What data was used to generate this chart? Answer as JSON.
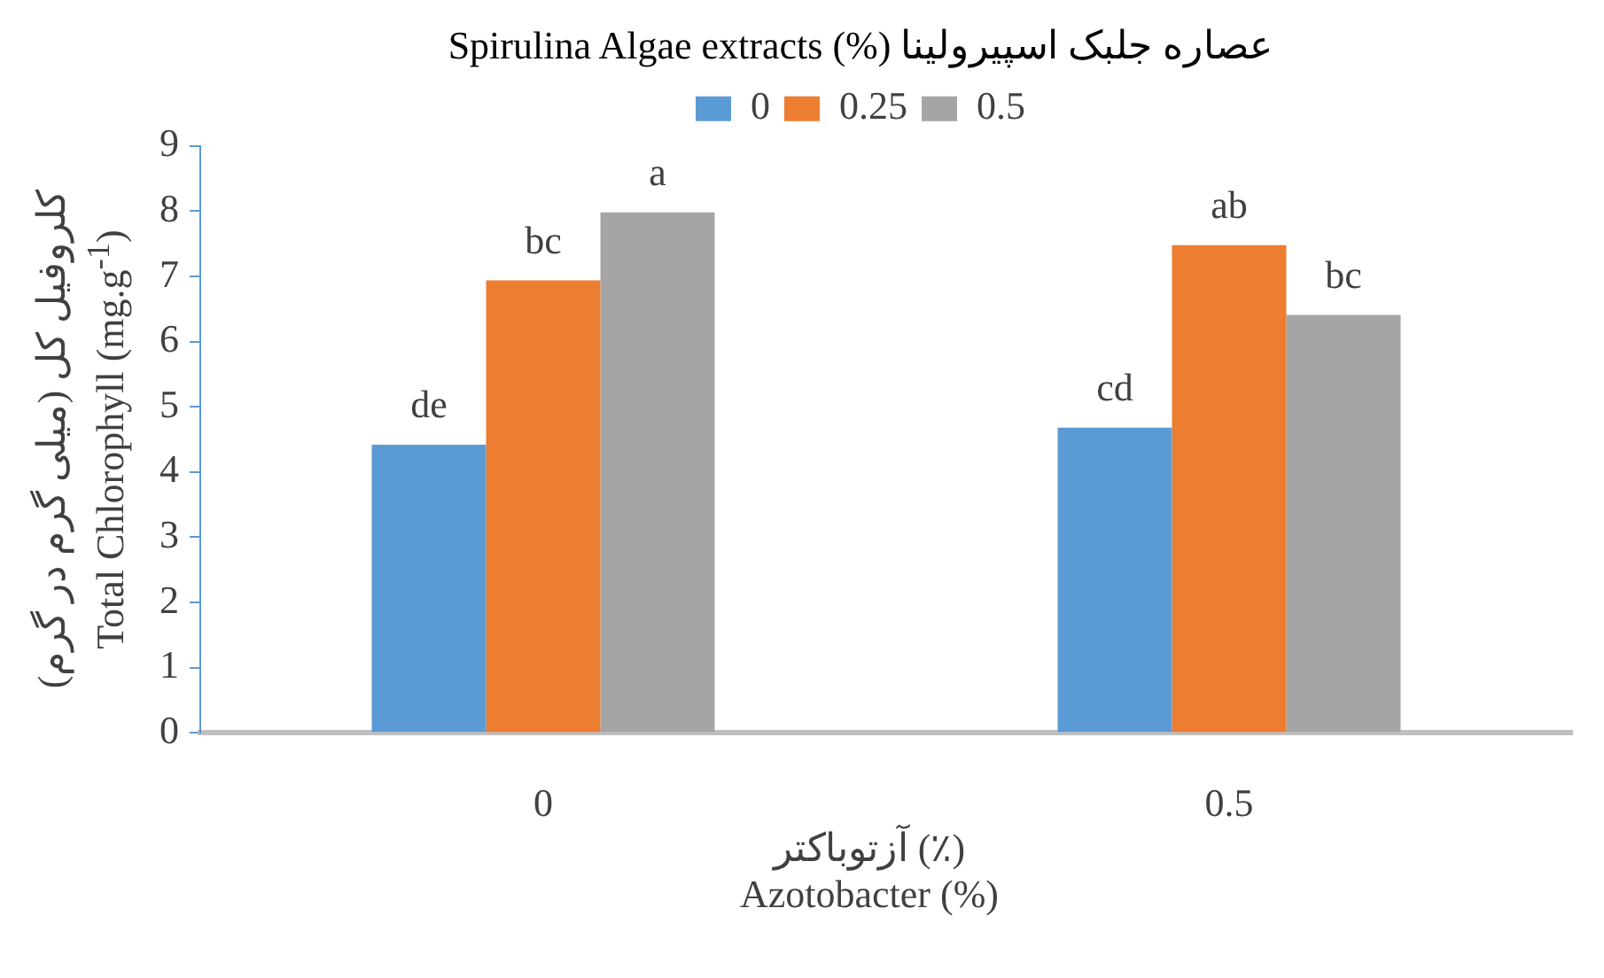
{
  "chart_data": {
    "type": "bar",
    "title": "Spirulina Algae extracts (%) عصاره جلبک اسپیرولینا",
    "xlabel": "آزتوباکتر (٪)\nAzotobacter (%)",
    "ylabel": "کلروفیل کل (میلی گرم در گرم)\nTotal Chlorophyll (mg.g$^{-1}$)",
    "categories": [
      "0",
      "0.5"
    ],
    "series": [
      {
        "name": "0",
        "color": "#5b9bd5",
        "values": [
          4.42,
          4.68
        ],
        "value_labels": [
          "de",
          "cd"
        ]
      },
      {
        "name": "0.25",
        "color": "#ed7d31",
        "values": [
          6.94,
          7.48
        ],
        "value_labels": [
          "bc",
          "ab"
        ]
      },
      {
        "name": "0.5",
        "color": "#a5a5a5",
        "values": [
          7.98,
          6.41
        ],
        "value_labels": [
          "a",
          "bc"
        ]
      }
    ],
    "ylim": [
      0,
      9
    ],
    "yticks": [
      0,
      1,
      2,
      3,
      4,
      5,
      6,
      7,
      8,
      9
    ],
    "grid": false,
    "legend": "top"
  }
}
